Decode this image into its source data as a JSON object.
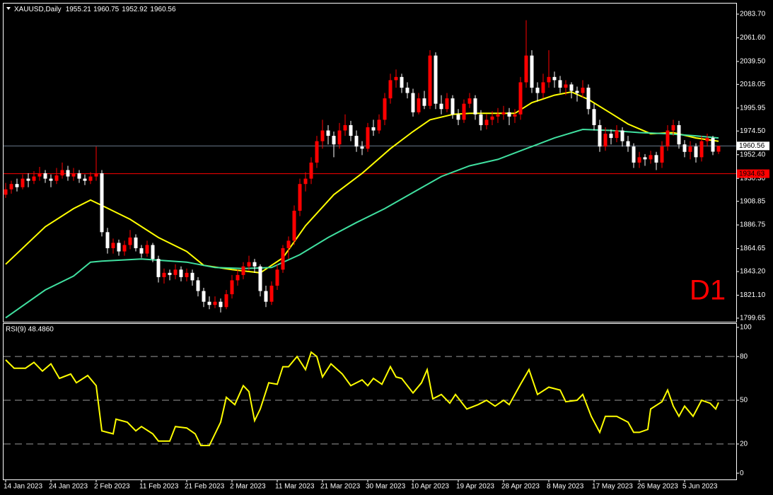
{
  "chart_data": [
    {
      "type": "candlestick",
      "title": "XAUUSD,Daily",
      "header_values": [
        1955.21,
        1960.75,
        1952.92,
        1960.56
      ],
      "up_color": "#ff0000",
      "down_color": "#ffffff",
      "ylim": [
        1796.3,
        2093.6
      ],
      "yticks": [
        {
          "value": 2083.7,
          "label": "2083.70"
        },
        {
          "value": 2061.6,
          "label": "2061.60"
        },
        {
          "value": 2039.5,
          "label": "2039.50"
        },
        2018.05,
        1995.95,
        {
          "value": 1974.5,
          "label": "1974.50"
        },
        {
          "value": 1952.4,
          "label": "1952.40"
        },
        {
          "value": 1930.3,
          "label": "1930.30"
        },
        1908.85,
        1886.75,
        1864.65,
        {
          "value": 1843.2,
          "label": "1843.20"
        },
        {
          "value": 1821.1,
          "label": "1821.10"
        },
        1799.65
      ],
      "current_price": 1960.56,
      "level": 1934.63,
      "level_color": "#ff0000",
      "watermark": "D1",
      "candles": [
        [
          1915,
          1926,
          1912,
          1920
        ],
        [
          1920,
          1928,
          1916,
          1925
        ],
        [
          1925,
          1930,
          1918,
          1922
        ],
        [
          1922,
          1934,
          1920,
          1930
        ],
        [
          1930,
          1935,
          1922,
          1928
        ],
        [
          1928,
          1937,
          1925,
          1932
        ],
        [
          1932,
          1941,
          1928,
          1935
        ],
        [
          1935,
          1938,
          1926,
          1930
        ],
        [
          1930,
          1934,
          1922,
          1928
        ],
        [
          1928,
          1940,
          1925,
          1933
        ],
        [
          1933,
          1945,
          1930,
          1938
        ],
        [
          1938,
          1942,
          1928,
          1932
        ],
        [
          1932,
          1940,
          1928,
          1935
        ],
        [
          1935,
          1938,
          1926,
          1930
        ],
        [
          1930,
          1934,
          1924,
          1928
        ],
        [
          1928,
          1936,
          1925,
          1932
        ],
        [
          1932,
          1960,
          1928,
          1935
        ],
        [
          1935,
          1938,
          1876,
          1880
        ],
        [
          1880,
          1884,
          1860,
          1865
        ],
        [
          1865,
          1874,
          1860,
          1870
        ],
        [
          1870,
          1873,
          1858,
          1862
        ],
        [
          1862,
          1872,
          1858,
          1868
        ],
        [
          1868,
          1882,
          1864,
          1875
        ],
        [
          1875,
          1878,
          1862,
          1865
        ],
        [
          1865,
          1868,
          1856,
          1860
        ],
        [
          1860,
          1872,
          1857,
          1868
        ],
        [
          1868,
          1870,
          1852,
          1855
        ],
        [
          1855,
          1858,
          1833,
          1838
        ],
        [
          1838,
          1846,
          1832,
          1842
        ],
        [
          1842,
          1845,
          1835,
          1840
        ],
        [
          1840,
          1850,
          1836,
          1845
        ],
        [
          1845,
          1848,
          1834,
          1838
        ],
        [
          1838,
          1846,
          1834,
          1842
        ],
        [
          1842,
          1845,
          1830,
          1835
        ],
        [
          1835,
          1838,
          1820,
          1825
        ],
        [
          1825,
          1828,
          1810,
          1815
        ],
        [
          1815,
          1820,
          1808,
          1812
        ],
        [
          1812,
          1820,
          1809,
          1815
        ],
        [
          1815,
          1818,
          1805,
          1810
        ],
        [
          1810,
          1826,
          1808,
          1822
        ],
        [
          1822,
          1840,
          1818,
          1835
        ],
        [
          1835,
          1845,
          1830,
          1840
        ],
        [
          1840,
          1852,
          1836,
          1848
        ],
        [
          1848,
          1858,
          1844,
          1852
        ],
        [
          1852,
          1855,
          1842,
          1848
        ],
        [
          1848,
          1850,
          1820,
          1825
        ],
        [
          1825,
          1830,
          1810,
          1815
        ],
        [
          1815,
          1834,
          1812,
          1830
        ],
        [
          1830,
          1850,
          1826,
          1845
        ],
        [
          1845,
          1868,
          1842,
          1865
        ],
        [
          1865,
          1876,
          1855,
          1872
        ],
        [
          1872,
          1905,
          1868,
          1900
        ],
        [
          1900,
          1930,
          1895,
          1925
        ],
        [
          1925,
          1936,
          1918,
          1930
        ],
        [
          1930,
          1950,
          1925,
          1945
        ],
        [
          1945,
          1970,
          1940,
          1965
        ],
        [
          1965,
          1985,
          1958,
          1975
        ],
        [
          1975,
          1980,
          1962,
          1970
        ],
        [
          1970,
          1974,
          1950,
          1962
        ],
        [
          1962,
          1982,
          1958,
          1975
        ],
        [
          1975,
          1990,
          1970,
          1980
        ],
        [
          1980,
          1984,
          1965,
          1970
        ],
        [
          1970,
          1975,
          1955,
          1960
        ],
        [
          1960,
          1965,
          1952,
          1958
        ],
        [
          1958,
          1982,
          1955,
          1978
        ],
        [
          1978,
          1985,
          1970,
          1975
        ],
        [
          1975,
          1990,
          1972,
          1985
        ],
        [
          1985,
          2010,
          1980,
          2005
        ],
        [
          2005,
          2028,
          2000,
          2022
        ],
        [
          2022,
          2032,
          2015,
          2025
        ],
        [
          2025,
          2028,
          2010,
          2015
        ],
        [
          2015,
          2020,
          2005,
          2010
        ],
        [
          2010,
          2014,
          1988,
          1992
        ],
        [
          1992,
          2010,
          1990,
          2005
        ],
        [
          2005,
          2012,
          1995,
          1998
        ],
        [
          1998,
          2050,
          1995,
          2045
        ],
        [
          2045,
          2048,
          1995,
          2000
        ],
        [
          2000,
          2008,
          1990,
          1995
        ],
        [
          1995,
          2010,
          1992,
          2005
        ],
        [
          2005,
          2008,
          1986,
          1990
        ],
        [
          1990,
          1995,
          1980,
          1985
        ],
        [
          1985,
          2004,
          1982,
          2000
        ],
        [
          2000,
          2010,
          1996,
          2005
        ],
        [
          2005,
          2008,
          1985,
          1990
        ],
        [
          1990,
          1994,
          1975,
          1980
        ],
        [
          1980,
          1990,
          1976,
          1985
        ],
        [
          1985,
          1993,
          1980,
          1988
        ],
        [
          1988,
          1996,
          1982,
          1990
        ],
        [
          1990,
          1998,
          1985,
          1992
        ],
        [
          1992,
          1996,
          1980,
          1988
        ],
        [
          1988,
          1995,
          1982,
          1990
        ],
        [
          1990,
          2025,
          1985,
          2020
        ],
        [
          2020,
          2078,
          2015,
          2045
        ],
        [
          2045,
          2050,
          2010,
          2015
        ],
        [
          2015,
          2020,
          2002,
          2010
        ],
        [
          2010,
          2028,
          2005,
          2020
        ],
        [
          2020,
          2050,
          2015,
          2025
        ],
        [
          2025,
          2030,
          2015,
          2022
        ],
        [
          2022,
          2026,
          2010,
          2015
        ],
        [
          2015,
          2022,
          2008,
          2018
        ],
        [
          2018,
          2020,
          2005,
          2012
        ],
        [
          2012,
          2016,
          2002,
          2010
        ],
        [
          2010,
          2022,
          2006,
          2015
        ],
        [
          2015,
          2018,
          1990,
          1995
        ],
        [
          1995,
          2000,
          1975,
          1980
        ],
        [
          1980,
          1985,
          1955,
          1960
        ],
        [
          1960,
          1978,
          1956,
          1972
        ],
        [
          1972,
          1976,
          1962,
          1968
        ],
        [
          1968,
          1980,
          1964,
          1975
        ],
        [
          1975,
          1978,
          1960,
          1965
        ],
        [
          1965,
          1970,
          1955,
          1960
        ],
        [
          1960,
          1963,
          1940,
          1945
        ],
        [
          1945,
          1955,
          1940,
          1950
        ],
        [
          1950,
          1953,
          1942,
          1948
        ],
        [
          1948,
          1956,
          1944,
          1952
        ],
        [
          1952,
          1955,
          1938,
          1945
        ],
        [
          1945,
          1965,
          1940,
          1960
        ],
        [
          1960,
          1980,
          1956,
          1975
        ],
        [
          1975,
          1985,
          1970,
          1980
        ],
        [
          1980,
          1984,
          1958,
          1962
        ],
        [
          1962,
          1966,
          1950,
          1955
        ],
        [
          1955,
          1965,
          1948,
          1960
        ],
        [
          1960,
          1963,
          1945,
          1950
        ],
        [
          1950,
          1970,
          1946,
          1965
        ],
        [
          1965,
          1972,
          1960,
          1968
        ],
        [
          1968,
          1970,
          1952,
          1955.21
        ],
        [
          1955.21,
          1960.75,
          1952.92,
          1960.56
        ]
      ],
      "overlays": [
        {
          "color": "#ffff00",
          "x": [
            0,
            7,
            12,
            15,
            17,
            22,
            27,
            32,
            35,
            40,
            45,
            49,
            53,
            58,
            63,
            68,
            72,
            75,
            79,
            82,
            87,
            90,
            93,
            97,
            100,
            103,
            107,
            110,
            114,
            118,
            122,
            126
          ],
          "values": [
            1850,
            1885,
            1902,
            1910,
            1905,
            1892,
            1875,
            1862,
            1849,
            1845,
            1842,
            1856,
            1886,
            1915,
            1935,
            1958,
            1974,
            1985,
            1990,
            1991,
            1991,
            1991,
            2001,
            2008,
            2011,
            2004,
            1991,
            1981,
            1972,
            1973,
            1968,
            1965
          ]
        },
        {
          "color": "#40e0a0",
          "x": [
            0,
            7,
            12,
            15,
            17,
            24,
            32,
            37,
            42,
            47,
            52,
            57,
            62,
            67,
            72,
            77,
            82,
            87,
            92,
            97,
            102,
            107,
            112,
            117,
            122,
            126
          ],
          "values": [
            1800,
            1826,
            1839,
            1852,
            1853,
            1855,
            1852,
            1847,
            1846,
            1847,
            1859,
            1875,
            1889,
            1902,
            1917,
            1932,
            1942,
            1948,
            1958,
            1968,
            1976,
            1975,
            1973,
            1972,
            1970,
            1968
          ]
        }
      ]
    },
    {
      "type": "line",
      "title": "RSI(9) 48.4860",
      "color": "#ffff00",
      "ylim": [
        -4.3,
        102.4
      ],
      "yticks": [
        0,
        20,
        50,
        80,
        100
      ],
      "levels": [
        20,
        50,
        80
      ],
      "x": [
        0,
        1.5,
        3.5,
        5,
        6.5,
        8,
        9.5,
        11.5,
        12.5,
        14.5,
        16,
        17,
        19,
        19.5,
        21.5,
        23,
        24,
        26,
        27,
        29,
        30,
        32,
        33.5,
        34.5,
        36,
        38,
        39,
        40.5,
        42,
        43,
        44,
        45,
        46.5,
        48,
        49,
        50,
        51.5,
        53,
        54,
        55,
        56,
        57.5,
        59.5,
        61,
        63,
        64,
        65,
        66.5,
        68,
        69,
        70,
        72,
        73.5,
        74.5,
        75.5,
        77,
        78.5,
        79.5,
        81.5,
        83.5,
        85,
        86.5,
        88,
        89,
        91,
        92.5,
        94,
        96,
        98,
        99,
        101,
        102,
        103.5,
        105,
        106,
        108,
        110,
        111,
        112,
        113.5,
        114,
        116,
        117,
        118,
        119,
        120,
        121.5,
        123,
        124.5,
        125.5,
        126
      ],
      "values": [
        77.7,
        72,
        72,
        76,
        70,
        75,
        65,
        68,
        62,
        67,
        60,
        29,
        27,
        37,
        35,
        29,
        32,
        27,
        22,
        22,
        32,
        31,
        27,
        19,
        19,
        35,
        52,
        47,
        60,
        56,
        36,
        44,
        62,
        61,
        73,
        73,
        80,
        71,
        83,
        80,
        66,
        75,
        68,
        60,
        64,
        60,
        65,
        61,
        73,
        66,
        65,
        55,
        62,
        71,
        51,
        54,
        48,
        54,
        44,
        47,
        50,
        46,
        50,
        47,
        61,
        71,
        54,
        59,
        57,
        49,
        50,
        54,
        39,
        28,
        39,
        39,
        35,
        28,
        28,
        30,
        44,
        49,
        57,
        46,
        39,
        46,
        39,
        50,
        48,
        44,
        48.486
      ],
      "xticks": [
        {
          "value": 0,
          "label": "14 Jan 2023"
        },
        {
          "value": 8,
          "label": "24 Jan 2023"
        },
        {
          "value": 16,
          "label": "2 Feb 2023"
        },
        {
          "value": 24,
          "label": "11 Feb 2023"
        },
        {
          "value": 32,
          "label": "21 Feb 2023"
        },
        {
          "value": 40,
          "label": "2 Mar 2023"
        },
        {
          "value": 48,
          "label": "11 Mar 2023"
        },
        {
          "value": 56,
          "label": "21 Mar 2023"
        },
        {
          "value": 64,
          "label": "30 Mar 2023"
        },
        {
          "value": 72,
          "label": "10 Apr 2023"
        },
        {
          "value": 80,
          "label": "19 Apr 2023"
        },
        {
          "value": 88,
          "label": "28 Apr 2023"
        },
        {
          "value": 96,
          "label": "8 May 2023"
        },
        {
          "value": 104,
          "label": "17 May 2023"
        },
        {
          "value": 112,
          "label": "26 May 2023"
        },
        {
          "value": 120,
          "label": "5 Jun 2023"
        }
      ]
    }
  ]
}
